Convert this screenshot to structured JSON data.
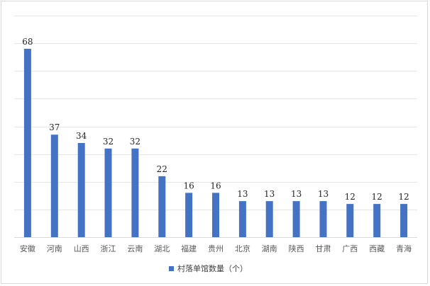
{
  "chart_data": {
    "type": "bar",
    "categories": [
      "安徽",
      "河南",
      "山西",
      "浙江",
      "云南",
      "湖北",
      "福建",
      "贵州",
      "北京",
      "湖南",
      "陕西",
      "甘肃",
      "广西",
      "西藏",
      "青海"
    ],
    "series": [
      {
        "name": "村落单馆数量（个）",
        "values": [
          68,
          37,
          34,
          32,
          32,
          22,
          16,
          16,
          13,
          13,
          13,
          13,
          12,
          12,
          12
        ],
        "color": "#4472C4"
      }
    ],
    "title": "",
    "xlabel": "",
    "ylabel": "",
    "ylim": [
      0,
      80
    ],
    "grid": true,
    "legend": "bottom"
  }
}
